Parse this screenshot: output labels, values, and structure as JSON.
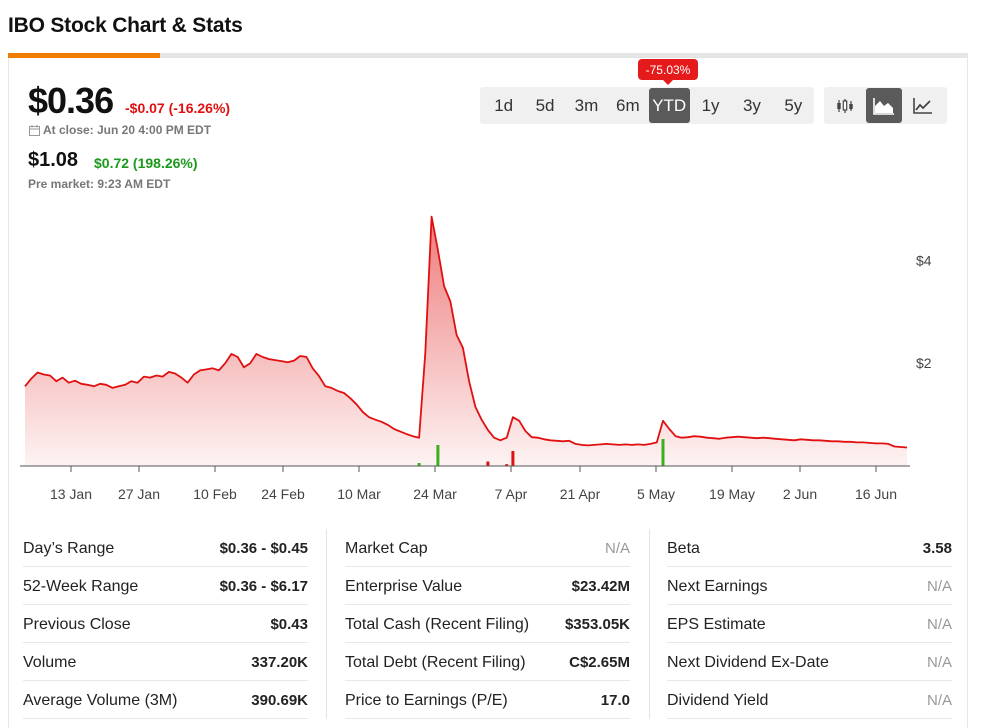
{
  "page": {
    "title": "IBO Stock Chart & Stats"
  },
  "quote": {
    "price": "$0.36",
    "change": "-$0.07 (-16.26%)",
    "close_label": "At close: Jun 20 4:00 PM EDT",
    "pre_price": "$1.08",
    "pre_change": "$0.72 (198.26%)",
    "pre_label": "Pre market: 9:23 AM EDT",
    "colors": {
      "down": "#e01010",
      "up": "#1a9a1a"
    }
  },
  "range_badge": "-75.03%",
  "ranges": [
    {
      "label": "1d",
      "active": false
    },
    {
      "label": "5d",
      "active": false
    },
    {
      "label": "3m",
      "active": false
    },
    {
      "label": "6m",
      "active": false
    },
    {
      "label": "YTD",
      "active": true
    },
    {
      "label": "1y",
      "active": false
    },
    {
      "label": "3y",
      "active": false
    },
    {
      "label": "5y",
      "active": false
    }
  ],
  "chart_types": [
    {
      "icon": "candlestick-icon",
      "active": false
    },
    {
      "icon": "area-chart-icon",
      "active": true
    },
    {
      "icon": "line-chart-icon",
      "active": false
    }
  ],
  "chart_data": {
    "type": "area",
    "x_tick_labels": [
      "13 Jan",
      "27 Jan",
      "10 Feb",
      "24 Feb",
      "10 Mar",
      "24 Mar",
      "7 Apr",
      "21 Apr",
      "5 May",
      "19 May",
      "2 Jun",
      "16 Jun"
    ],
    "y_tick_labels": [
      "$2",
      "$4"
    ],
    "y_ticks": [
      2,
      4
    ],
    "ylim": [
      0,
      5
    ],
    "price_color": "#e01010",
    "series": [
      {
        "values": [
          1.55,
          1.7,
          1.82,
          1.78,
          1.76,
          1.65,
          1.72,
          1.62,
          1.66,
          1.6,
          1.58,
          1.55,
          1.6,
          1.58,
          1.52,
          1.55,
          1.58,
          1.65,
          1.62,
          1.74,
          1.72,
          1.76,
          1.74,
          1.83,
          1.8,
          1.72,
          1.62,
          1.78,
          1.86,
          1.88,
          1.9,
          1.86,
          2.0,
          2.18,
          2.12,
          1.92,
          2.0,
          2.18,
          2.12,
          2.08,
          2.06,
          2.04,
          2.02,
          2.05,
          2.14,
          2.12,
          1.9,
          1.75,
          1.55,
          1.52,
          1.46,
          1.42,
          1.32,
          1.2,
          1.05,
          0.95,
          0.9,
          0.86,
          0.8,
          0.72,
          0.67,
          0.62,
          0.58,
          0.55,
          2.2,
          4.85,
          4.2,
          3.5,
          3.2,
          2.55,
          2.3,
          1.65,
          1.15,
          0.9,
          0.7,
          0.55,
          0.5,
          0.55,
          0.95,
          0.88,
          0.68,
          0.56,
          0.55,
          0.52,
          0.5,
          0.49,
          0.48,
          0.49,
          0.43,
          0.41,
          0.4,
          0.41,
          0.42,
          0.43,
          0.42,
          0.41,
          0.42,
          0.41,
          0.42,
          0.41,
          0.43,
          0.46,
          0.88,
          0.72,
          0.58,
          0.55,
          0.56,
          0.58,
          0.57,
          0.55,
          0.54,
          0.53,
          0.55,
          0.56,
          0.57,
          0.56,
          0.55,
          0.54,
          0.55,
          0.54,
          0.53,
          0.52,
          0.51,
          0.5,
          0.52,
          0.51,
          0.5,
          0.5,
          0.49,
          0.48,
          0.48,
          0.47,
          0.47,
          0.46,
          0.46,
          0.45,
          0.44,
          0.44,
          0.43,
          0.38,
          0.37,
          0.36
        ]
      }
    ],
    "volume_bars": [
      {
        "index": 63,
        "value": 0.1,
        "color": "green"
      },
      {
        "index": 66,
        "value": 0.7,
        "color": "green"
      },
      {
        "index": 74,
        "value": 0.15,
        "color": "red"
      },
      {
        "index": 77,
        "value": 0.06,
        "color": "red"
      },
      {
        "index": 78,
        "value": 0.5,
        "color": "red"
      },
      {
        "index": 102,
        "value": 0.9,
        "color": "green"
      }
    ]
  },
  "stats": {
    "col1": [
      {
        "label": "Day’s Range",
        "value": "$0.36 - $0.45"
      },
      {
        "label": "52-Week Range",
        "value": "$0.36 - $6.17"
      },
      {
        "label": "Previous Close",
        "value": "$0.43"
      },
      {
        "label": "Volume",
        "value": "337.20K"
      },
      {
        "label": "Average Volume (3M)",
        "value": "390.69K"
      }
    ],
    "col2": [
      {
        "label": "Market Cap",
        "value": "N/A"
      },
      {
        "label": "Enterprise Value",
        "value": "$23.42M"
      },
      {
        "label": "Total Cash (Recent Filing)",
        "value": "$353.05K"
      },
      {
        "label": "Total Debt (Recent Filing)",
        "value": "C$2.65M"
      },
      {
        "label": "Price to Earnings (P/E)",
        "value": "17.0"
      }
    ],
    "col3": [
      {
        "label": "Beta",
        "value": "3.58"
      },
      {
        "label": "Next Earnings",
        "value": "N/A"
      },
      {
        "label": "EPS Estimate",
        "value": "N/A"
      },
      {
        "label": "Next Dividend Ex-Date",
        "value": "N/A"
      },
      {
        "label": "Dividend Yield",
        "value": "N/A"
      }
    ]
  }
}
